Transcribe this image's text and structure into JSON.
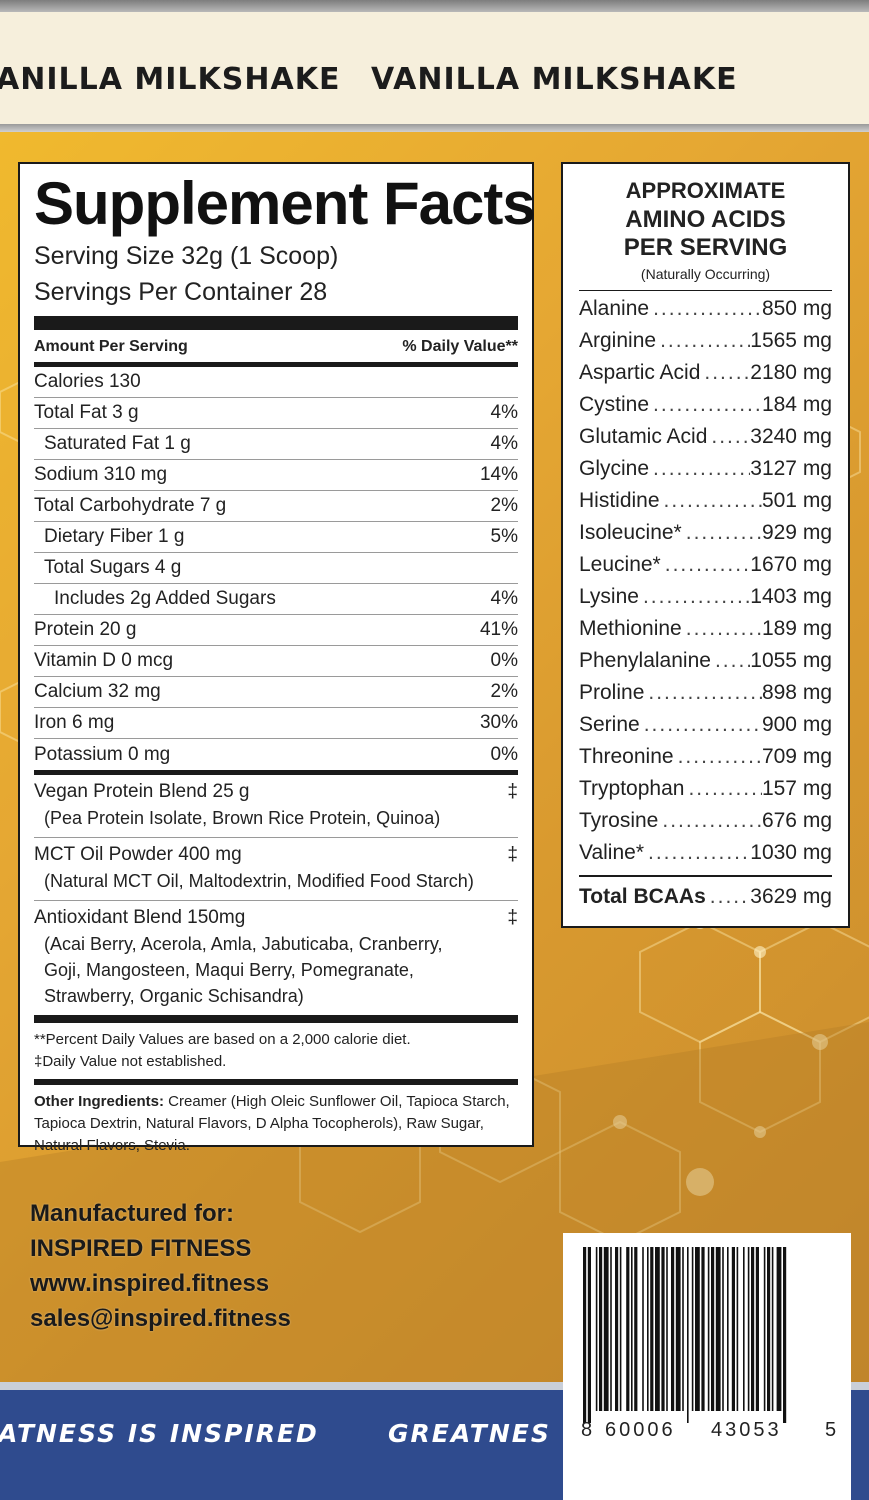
{
  "banner": {
    "flavor_left": "ANILLA MILKSHAKE",
    "flavor_right": "VANILLA MILKSHAKE"
  },
  "supplement_facts": {
    "title": "Supplement Facts",
    "serving_size": "Serving Size 32g (1 Scoop)",
    "servings_per_container": "Servings Per Container  28",
    "header_left": "Amount Per Serving",
    "header_right": "% Daily Value**",
    "rows": [
      {
        "label": "Calories  130",
        "dv": ""
      },
      {
        "label": "Total Fat  3 g",
        "dv": "4%"
      },
      {
        "label": "Saturated Fat  1 g",
        "dv": "4%"
      },
      {
        "label": "Sodium  310 mg",
        "dv": "14%"
      },
      {
        "label": "Total Carbohydrate  7 g",
        "dv": "2%"
      },
      {
        "label": "Dietary Fiber  1 g",
        "dv": "5%"
      },
      {
        "label": "Total Sugars  4 g",
        "dv": ""
      },
      {
        "label": "Includes 2g Added Sugars",
        "dv": "4%"
      },
      {
        "label": "Protein  20 g",
        "dv": "41%"
      },
      {
        "label": "Vitamin D  0 mcg",
        "dv": "0%"
      },
      {
        "label": "Calcium  32 mg",
        "dv": "2%"
      },
      {
        "label": "Iron  6 mg",
        "dv": "30%"
      },
      {
        "label": "Potassium  0 mg",
        "dv": "0%"
      }
    ],
    "blends": [
      {
        "name": "Vegan Protein Blend  25 g",
        "dv": "‡",
        "sub": [
          "(Pea Protein Isolate, Brown Rice Protein, Quinoa)"
        ]
      },
      {
        "name": "MCT Oil Powder  400 mg",
        "dv": "‡",
        "sub": [
          "(Natural MCT Oil, Maltodextrin, Modified Food Starch)"
        ]
      },
      {
        "name": "Antioxidant Blend  150mg",
        "dv": "‡",
        "sub": [
          "(Acai Berry, Acerola, Amla, Jabuticaba, Cranberry,",
          "Goji, Mangosteen, Maqui Berry, Pomegranate,",
          "Strawberry, Organic Schisandra)"
        ]
      }
    ],
    "footnote_1": "**Percent Daily Values are based on a 2,000 calorie diet.",
    "footnote_2": "‡Daily Value not established.",
    "other_label": "Other Ingredients:",
    "other_text": " Creamer (High Oleic Sunflower Oil, Tapioca Starch, Tapioca Dextrin, Natural Flavors, D Alpha Tocopherols), Raw Sugar, Natural Flavors, Stevia."
  },
  "amino": {
    "title_1": "APPROXIMATE",
    "title_2": "AMINO ACIDS",
    "title_3": "PER SERVING",
    "note": "(Naturally Occurring)",
    "rows": [
      {
        "name": "Alanine",
        "value": "850 mg"
      },
      {
        "name": "Arginine",
        "value": "1565 mg"
      },
      {
        "name": "Aspartic Acid",
        "value": "2180 mg"
      },
      {
        "name": "Cystine",
        "value": "184 mg"
      },
      {
        "name": "Glutamic Acid",
        "value": "3240 mg"
      },
      {
        "name": "Glycine",
        "value": "3127 mg"
      },
      {
        "name": "Histidine",
        "value": "501 mg"
      },
      {
        "name": "Isoleucine*",
        "value": "929 mg"
      },
      {
        "name": "Leucine*",
        "value": "1670 mg"
      },
      {
        "name": "Lysine",
        "value": "1403 mg"
      },
      {
        "name": "Methionine",
        "value": "189 mg"
      },
      {
        "name": "Phenylalanine",
        "value": "1055 mg"
      },
      {
        "name": "Proline",
        "value": "898 mg"
      },
      {
        "name": "Serine",
        "value": "900 mg"
      },
      {
        "name": "Threonine",
        "value": "709 mg"
      },
      {
        "name": "Tryptophan",
        "value": "157 mg"
      },
      {
        "name": "Tyrosine",
        "value": "676 mg"
      },
      {
        "name": "Valine*",
        "value": "1030 mg"
      }
    ],
    "total_name": "Total BCAAs",
    "total_value": "3629 mg"
  },
  "manufacturer": {
    "line_1": "Manufactured for:",
    "line_2": "INSPIRED FITNESS",
    "line_3": "www.inspired.fitness",
    "line_4": "sales@inspired.fitness"
  },
  "slogan": {
    "left": "ATNESS IS INSPIRED",
    "right": "GREATNES"
  },
  "barcode": {
    "digit_first": "8",
    "digits_group_1": "60006",
    "digits_group_2": "43053",
    "digit_last": "5"
  },
  "colors": {
    "background_gold": "#e3a63a",
    "band_blue": "#2f4b8e",
    "banner_cream": "#f6efdc"
  }
}
